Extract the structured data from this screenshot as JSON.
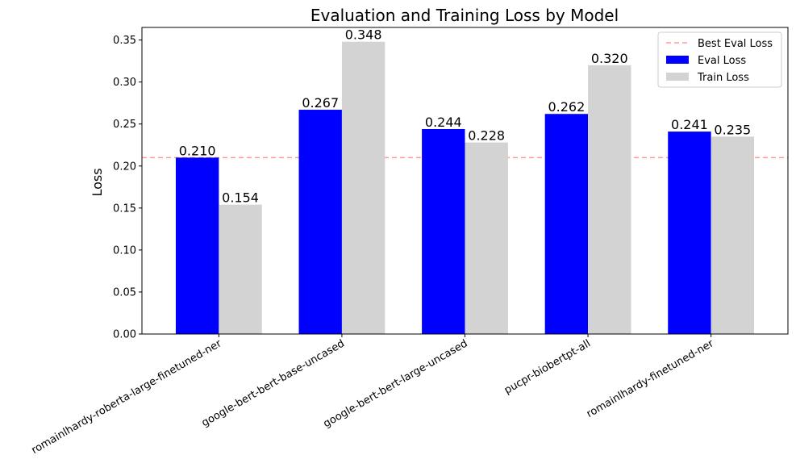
{
  "chart_data": {
    "type": "bar",
    "title": "Evaluation and Training Loss by Model",
    "xlabel": "",
    "ylabel": "Loss",
    "ylim": [
      0,
      0.365
    ],
    "yticks": [
      0.0,
      0.05,
      0.1,
      0.15,
      0.2,
      0.25,
      0.3,
      0.35
    ],
    "ytick_labels": [
      "0.00",
      "0.05",
      "0.10",
      "0.15",
      "0.20",
      "0.25",
      "0.30",
      "0.35"
    ],
    "grid": false,
    "legend_position": "top-right",
    "categories": [
      "romainlhardy-roberta-large-finetuned-ner",
      "google-bert-bert-base-uncased",
      "google-bert-bert-large-uncased",
      "pucpr-biobertpt-all",
      "romainlhardy-finetuned-ner"
    ],
    "series": [
      {
        "name": "Eval Loss",
        "color": "#0000ff",
        "values": [
          0.21,
          0.267,
          0.244,
          0.262,
          0.241
        ],
        "labels": [
          "0.210",
          "0.267",
          "0.244",
          "0.262",
          "0.241"
        ]
      },
      {
        "name": "Train Loss",
        "color": "#d3d3d3",
        "values": [
          0.154,
          0.348,
          0.228,
          0.32,
          0.235
        ],
        "labels": [
          "0.154",
          "0.348",
          "0.228",
          "0.320",
          "0.235"
        ]
      }
    ],
    "reference_line": {
      "name": "Best Eval Loss",
      "value": 0.21,
      "color": "#ff9999",
      "style": "dashed"
    }
  }
}
